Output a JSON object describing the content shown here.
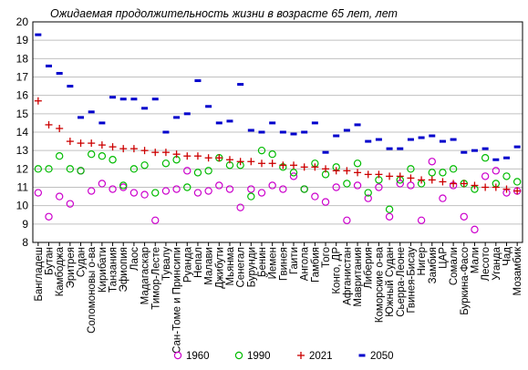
{
  "chart_data": {
    "type": "scatter",
    "title": "Ожидаемая продолжительность жизни в возрасте 65 лет, лет",
    "xlabel": "",
    "ylabel": "",
    "ylim": [
      8,
      20
    ],
    "yticks": [
      8,
      9,
      10,
      11,
      12,
      13,
      14,
      15,
      16,
      17,
      18,
      19,
      20
    ],
    "grid": true,
    "legend_position": "bottom",
    "categories": [
      "Бангладеш",
      "Бутан",
      "Камбоджа",
      "Эритрея",
      "Судан",
      "Соломоновы о-ва",
      "Кирибати",
      "Танзания",
      "Эфиопия",
      "Лаос",
      "Мадагаскар",
      "Тимор-Лесте",
      "Тувалу",
      "Сан-Томе и Принсипи",
      "Руанда",
      "Непал",
      "Малави",
      "Джибути",
      "Мьянма",
      "Сенегал",
      "Бурунди",
      "Бенин",
      "Йемен",
      "Гвинея",
      "Гаити",
      "Ангола",
      "Гамбия",
      "Того",
      "Конго, ДР",
      "Афганистан",
      "Мавритания",
      "Либерия",
      "Коморские о-ва",
      "Южный Судан",
      "Сьерра-Леоне",
      "Гвинея-Бисау",
      "Нигер",
      "Замбия",
      "ЦАР",
      "Сомали",
      "Буркина-Фасо",
      "Мали",
      "Лесото",
      "Уганда",
      "Чад",
      "Мозамбик"
    ],
    "series": [
      {
        "name": "1960",
        "marker": "circle",
        "color": "#cc00cc",
        "values": [
          10.7,
          9.4,
          10.5,
          10.1,
          11.9,
          10.8,
          11.2,
          10.9,
          11.0,
          10.7,
          10.6,
          9.2,
          10.8,
          10.9,
          11.9,
          10.7,
          10.8,
          11.1,
          10.9,
          9.9,
          10.9,
          10.7,
          11.1,
          10.9,
          11.6,
          10.9,
          10.5,
          10.2,
          11.0,
          9.2,
          11.1,
          10.4,
          11.0,
          9.4,
          11.2,
          11.1,
          9.2,
          12.4,
          10.4,
          11.1,
          9.4,
          8.7,
          11.6,
          11.9,
          10.7,
          10.8
        ]
      },
      {
        "name": "1990",
        "marker": "circle",
        "color": "#00bb00",
        "values": [
          12.0,
          12.0,
          12.7,
          12.0,
          11.9,
          12.8,
          12.7,
          12.5,
          11.1,
          12.0,
          12.2,
          10.7,
          12.3,
          12.5,
          11.0,
          11.8,
          11.9,
          12.6,
          12.2,
          12.2,
          10.5,
          13.0,
          12.8,
          12.1,
          11.8,
          10.9,
          12.3,
          11.7,
          12.1,
          11.2,
          12.3,
          10.7,
          11.4,
          9.8,
          11.4,
          12.0,
          11.2,
          11.8,
          11.8,
          12.0,
          11.2,
          10.9,
          12.6,
          11.2,
          11.6,
          11.3
        ]
      },
      {
        "name": "2021",
        "marker": "plus",
        "color": "#cc0000",
        "values": [
          15.7,
          14.4,
          14.2,
          13.5,
          13.4,
          13.4,
          13.3,
          13.2,
          13.1,
          13.1,
          13.0,
          12.9,
          12.9,
          12.8,
          12.7,
          12.7,
          12.6,
          12.6,
          12.5,
          12.4,
          12.4,
          12.3,
          12.3,
          12.2,
          12.2,
          12.1,
          12.1,
          12.0,
          11.9,
          11.9,
          11.8,
          11.7,
          11.7,
          11.6,
          11.6,
          11.5,
          11.4,
          11.4,
          11.3,
          11.2,
          11.2,
          11.1,
          11.0,
          11.0,
          10.9,
          10.8
        ]
      },
      {
        "name": "2050",
        "marker": "dash",
        "color": "#0000cc",
        "values": [
          19.3,
          17.6,
          17.2,
          16.5,
          14.8,
          15.1,
          14.5,
          15.9,
          15.8,
          15.8,
          15.3,
          15.8,
          14.0,
          14.8,
          15.0,
          16.8,
          15.4,
          14.5,
          14.6,
          16.6,
          14.1,
          14.0,
          14.5,
          14.0,
          13.9,
          14.0,
          14.5,
          12.9,
          13.8,
          14.1,
          14.4,
          13.5,
          13.6,
          13.1,
          13.1,
          13.6,
          13.7,
          13.8,
          13.5,
          13.6,
          12.9,
          13.0,
          13.1,
          12.5,
          12.6,
          13.2
        ]
      }
    ]
  },
  "colors": {
    "background": "#ffffff",
    "grid": "#c0c0c0",
    "axis": "#000000"
  }
}
